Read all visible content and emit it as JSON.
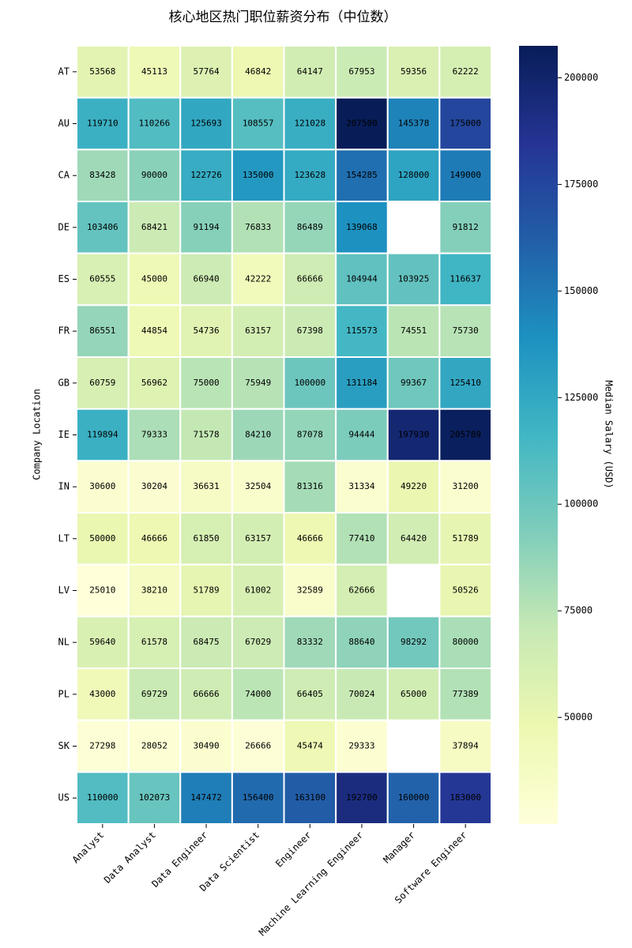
{
  "chart_data": {
    "type": "heatmap",
    "title": "核心地区热门职位薪资分布（中位数）",
    "ylabel": "Company Location",
    "colorbar_label": "Median Salary (USD)",
    "x_categories": [
      "Analyst",
      "Data Analyst",
      "Data Engineer",
      "Data Scientist",
      "Engineer",
      "Machine Learning Engineer",
      "Manager",
      "Software Engineer"
    ],
    "y_categories": [
      "AT",
      "AU",
      "CA",
      "DE",
      "ES",
      "FR",
      "GB",
      "IE",
      "IN",
      "LT",
      "LV",
      "NL",
      "PL",
      "SK",
      "US"
    ],
    "values": [
      [
        53568,
        45113,
        57764,
        46842,
        64147,
        67953,
        59356,
        62222
      ],
      [
        119710,
        110266,
        125693,
        108557,
        121028,
        207500,
        145378,
        175000
      ],
      [
        83428,
        90000,
        122726,
        135000,
        123628,
        154285,
        128000,
        149000
      ],
      [
        103406,
        68421,
        91194,
        76833,
        86489,
        139068,
        null,
        91812
      ],
      [
        60555,
        45000,
        66940,
        42222,
        66666,
        104944,
        103925,
        116637
      ],
      [
        86551,
        44854,
        54736,
        63157,
        67398,
        115573,
        74551,
        75730
      ],
      [
        60759,
        56962,
        75000,
        75949,
        100000,
        131184,
        99367,
        125410
      ],
      [
        119894,
        79333,
        71578,
        84210,
        87078,
        94444,
        197930,
        205789
      ],
      [
        30600,
        30204,
        36631,
        32504,
        81316,
        31334,
        49220,
        31200
      ],
      [
        50000,
        46666,
        61850,
        63157,
        46666,
        77410,
        64420,
        51789
      ],
      [
        25010,
        38210,
        51789,
        61002,
        32589,
        62666,
        null,
        50526
      ],
      [
        59640,
        61578,
        68475,
        67029,
        83332,
        88640,
        98292,
        80000
      ],
      [
        43000,
        69729,
        66666,
        74000,
        66405,
        70024,
        65000,
        77389
      ],
      [
        27298,
        28052,
        30490,
        26666,
        45474,
        29333,
        null,
        37894
      ],
      [
        110000,
        102073,
        147472,
        156400,
        163100,
        192700,
        160000,
        183000
      ]
    ],
    "clim": [
      25010,
      207500
    ],
    "colorbar_ticks": [
      50000,
      75000,
      100000,
      125000,
      150000,
      175000,
      200000
    ],
    "colormap": [
      "#ffffd9",
      "#edf8b1",
      "#c7e9b4",
      "#7fcdbb",
      "#41b6c4",
      "#1d91c0",
      "#225ea8",
      "#253494",
      "#081d58"
    ]
  }
}
